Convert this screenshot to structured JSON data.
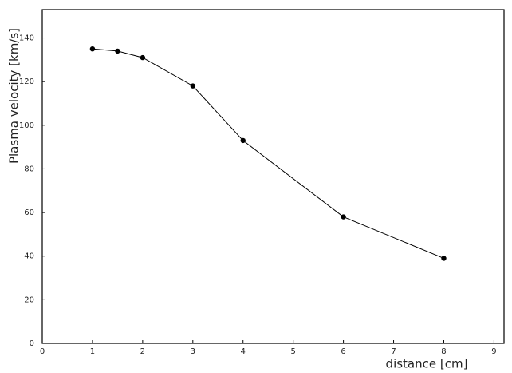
{
  "chart_data": {
    "type": "line",
    "x_label": "distance [cm]",
    "y_label": "Plasma velocity [km/s]",
    "x": [
      1,
      1.5,
      2,
      3,
      4,
      6,
      8
    ],
    "series": [
      {
        "color": "#000000",
        "values": [
          135,
          134,
          131,
          118,
          93,
          58,
          39
        ]
      }
    ],
    "xlim": [
      0,
      9.2
    ],
    "xticks": [
      0,
      1,
      2,
      3,
      4,
      5,
      6,
      7,
      8,
      9
    ],
    "ylim": [
      0,
      153
    ],
    "yticks": [
      0,
      20,
      40,
      60,
      80,
      100,
      120,
      140
    ],
    "grid": false
  }
}
